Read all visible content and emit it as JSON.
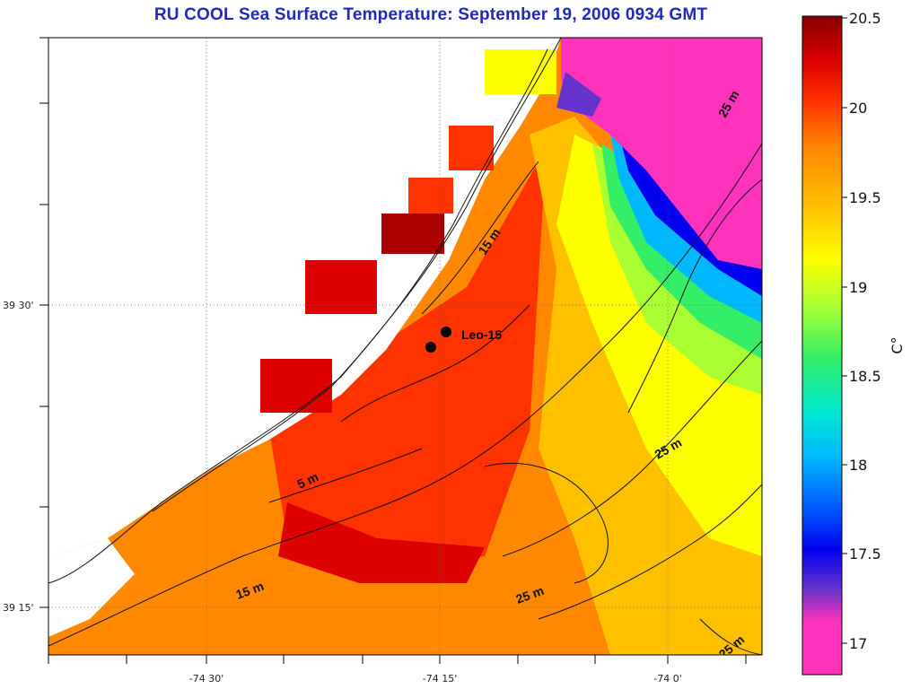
{
  "title": "RU COOL  Sea Surface Temperature:  September 19, 2006 0934 GMT",
  "axes": {
    "x_ticks": [
      "-74 30'",
      "-74 15'",
      "-74 0'"
    ],
    "y_ticks": [
      "39 30'",
      "39 15'"
    ]
  },
  "station": {
    "label": "Leo-15"
  },
  "contour_labels": [
    "25 m",
    "15 m",
    "5 m",
    "25 m",
    "15 m",
    "25 m",
    "25 m"
  ],
  "colorbar": {
    "unit": "C°",
    "ticks": [
      "20.5",
      "20",
      "19.5",
      "19",
      "18.5",
      "18",
      "17.5",
      "17"
    ],
    "range": [
      16.9,
      20.5
    ],
    "colors": [
      "#ff33bb",
      "#6633cc",
      "#0000ee",
      "#0055ff",
      "#00b8ff",
      "#00e8d0",
      "#33ee66",
      "#aaff33",
      "#ffff00",
      "#ffc000",
      "#ff8800",
      "#ff3300",
      "#dd0000",
      "#880000"
    ]
  }
}
